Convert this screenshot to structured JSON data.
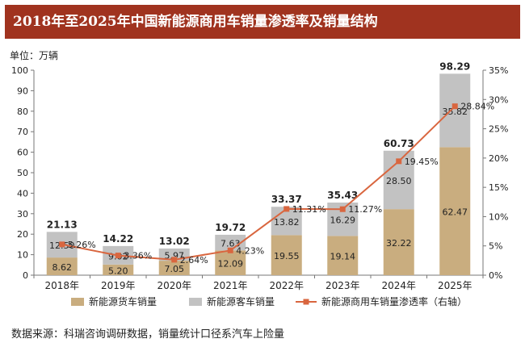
{
  "title": "2018年至2025年中国新能源商用车销量渗透率及销量结构",
  "unit": "单位：万辆",
  "source": "数据来源：科瑞咨询调研数据，销量统计口径系汽车上险量",
  "colors": {
    "title_bg": "#a0331f",
    "truck": "#c9ad7f",
    "bus": "#c2c2c2",
    "rate": "#d9663f"
  },
  "chart_data": {
    "type": "bar",
    "stacked": true,
    "categories": [
      "2018年",
      "2019年",
      "2020年",
      "2021年",
      "2022年",
      "2023年",
      "2024年",
      "2025年"
    ],
    "series": [
      {
        "name": "新能源货车销量",
        "values": [
          8.62,
          5.2,
          7.05,
          12.09,
          19.55,
          19.14,
          32.22,
          62.47
        ]
      },
      {
        "name": "新能源客车销量",
        "values": [
          12.5,
          9.02,
          5.97,
          7.63,
          13.82,
          16.29,
          28.5,
          35.82
        ]
      }
    ],
    "totals": [
      "21.13",
      "14.22",
      "13.02",
      "19.72",
      "33.37",
      "35.43",
      "60.73",
      "98.29"
    ],
    "truck_labels": [
      "8.62",
      "5.20",
      "7.05",
      "12.09",
      "19.55",
      "19.14",
      "32.22",
      "62.47"
    ],
    "bus_labels": [
      "12.50",
      "9.02",
      "5.97",
      "7.63",
      "13.82",
      "16.29",
      "28.50",
      "35.82"
    ],
    "line": {
      "name": "新能源商用车销量渗透率（右轴）",
      "values": [
        5.26,
        3.36,
        2.64,
        4.23,
        11.31,
        11.27,
        19.45,
        28.84
      ],
      "labels": [
        "5.26%",
        "3.36%",
        "2.64%",
        "4.23%",
        "11.31%",
        "11.27%",
        "19.45%",
        "28.84%"
      ]
    },
    "y_left": {
      "min": 0,
      "max": 100,
      "ticks": [
        "0",
        "10",
        "20",
        "30",
        "40",
        "50",
        "60",
        "70",
        "80",
        "90",
        "100"
      ]
    },
    "y_right": {
      "min": 0,
      "max": 35,
      "ticks": [
        "0%",
        "5%",
        "10%",
        "15%",
        "20%",
        "25%",
        "30%",
        "35%"
      ]
    },
    "legend": [
      "新能源货车销量",
      "新能源客车销量",
      "新能源商用车销量渗透率（右轴）"
    ],
    "legend_position": "bottom",
    "grid": false
  }
}
